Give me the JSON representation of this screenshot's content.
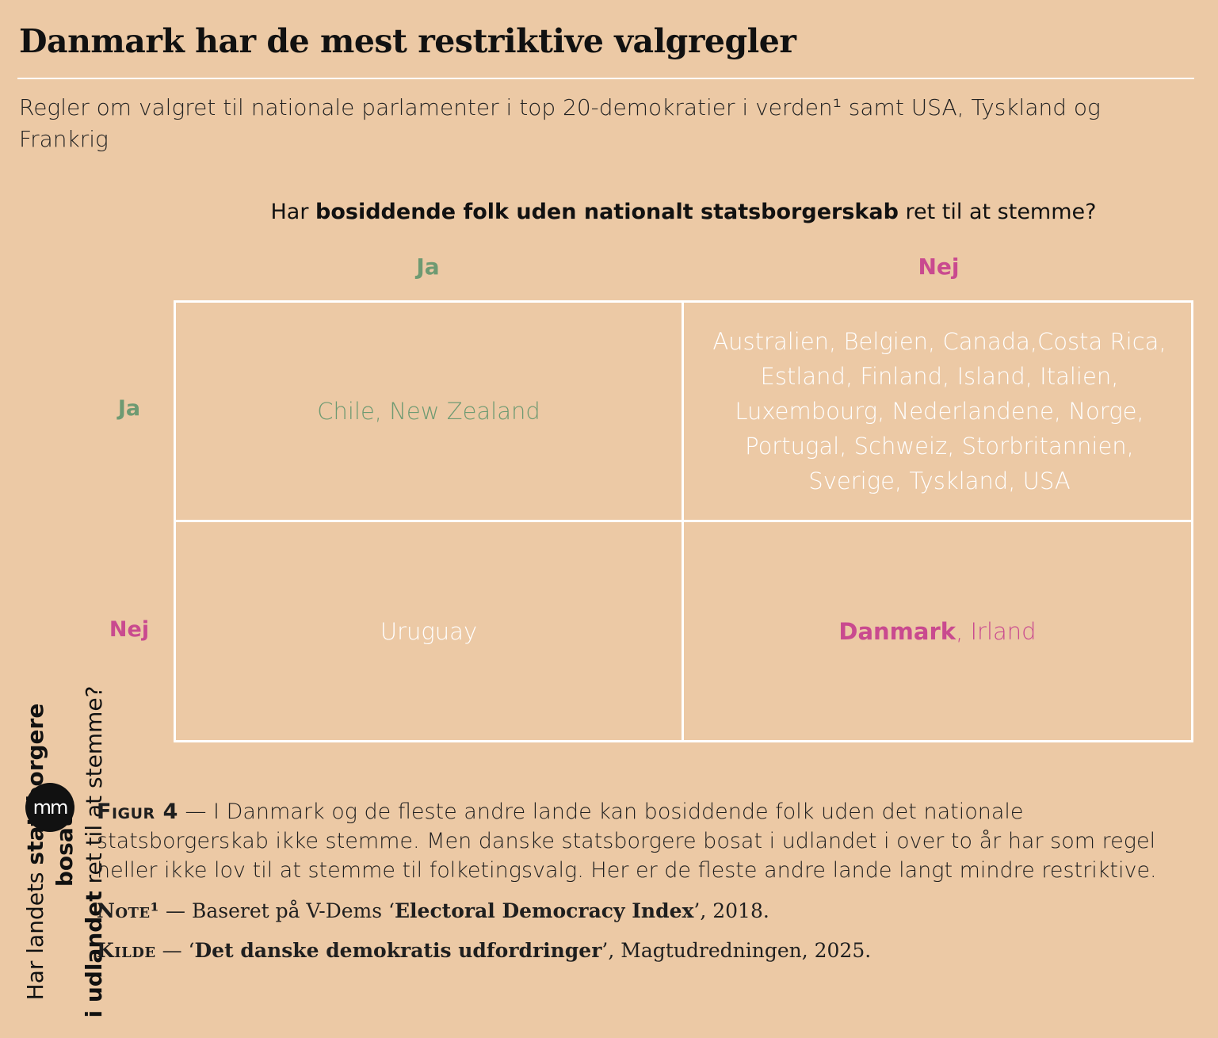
{
  "title": "Danmark har de mest restriktive valgregler",
  "subtitle": "Regler om valgret til nationale parlamenter i top 20-demokratier i verden¹ samt USA, Tyskland og Frankrig",
  "column_question": {
    "prefix": "Har ",
    "bold": "bosiddende folk uden nationalt statsborgerskab",
    "suffix": " ret til at stemme?"
  },
  "columns": [
    "Ja",
    "Nej"
  ],
  "row_question": {
    "line1_prefix": "Har landets ",
    "line1_bold": "statsborgere bosat",
    "line2_bold": "i udlandet",
    "line2_suffix": " ret til at stemme?"
  },
  "rows": [
    "Ja",
    "Nej"
  ],
  "cells": {
    "ja_ja": "Chile, New Zealand",
    "ja_nej": "Australien, Belgien, Canada,Costa Rica, Estland, Finland, Island, Italien, Luxembourg, Nederlandene, Norge, Portugal, Schweiz, Storbritannien, Sverige, Tyskland, USA",
    "nej_ja": "Uruguay",
    "nej_nej_bold": "Danmark",
    "nej_nej_rest": ", Irland"
  },
  "colors": {
    "background": "#ecc9a5",
    "ja": "#6e9a72",
    "nej": "#c94a8f",
    "grid": "#ffffff"
  },
  "logo": "mm",
  "caption": {
    "label": "Figur 4",
    "sep": " — ",
    "text": "I Danmark og de fleste andre lande kan bosiddende folk uden det nationale statsborgerskab ikke stemme. Men danske statsborgere bosat i udlandet i over to år har som regel heller ikke lov til at stemme til folketingsvalg. Her er de fleste andre lande langt mindre restriktive."
  },
  "note": {
    "label": "Note¹",
    "sep": " — ",
    "prefix": "Baseret på V-Dems ‘",
    "bold": "Electoral Democracy Index",
    "suffix": "’, 2018."
  },
  "source": {
    "label": "Kilde",
    "sep": " — ",
    "prefix": "‘",
    "bold": "Det danske demokratis udfordringer",
    "suffix": "’, Magtudredningen, 2025."
  }
}
